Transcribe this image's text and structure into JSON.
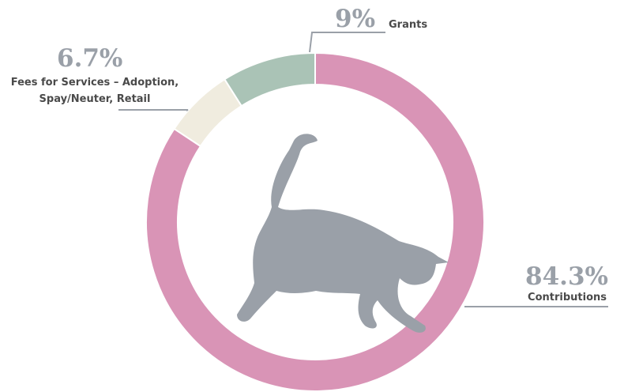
{
  "chart_data": {
    "type": "donut",
    "categories": [
      "Contributions",
      "Fees for Services – Adoption, Spay/Neuter, Retail",
      "Grants"
    ],
    "values": [
      84.3,
      6.7,
      9
    ],
    "value_labels": [
      "84.3%",
      "6.7%",
      "9%"
    ],
    "colors": [
      "#d994b6",
      "#f0ecdf",
      "#aac3b6"
    ]
  }
}
